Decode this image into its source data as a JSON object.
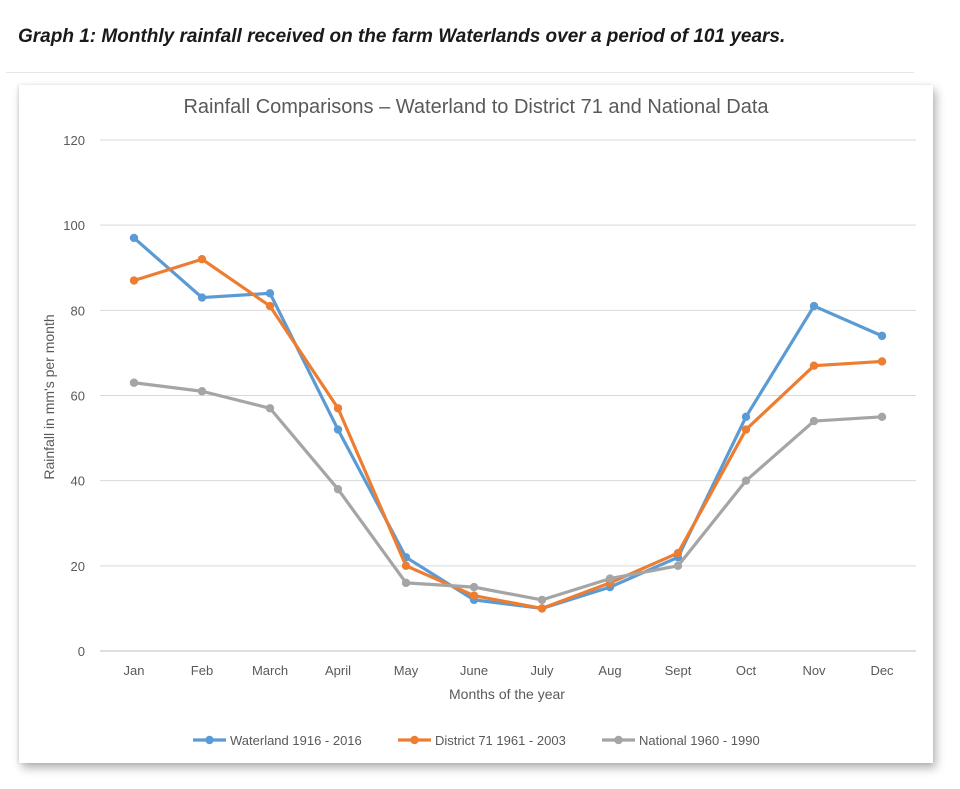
{
  "caption": "Graph 1: Monthly rainfall received on the farm Waterlands over a period of 101 years.",
  "chart_data": {
    "type": "line",
    "title": "Rainfall Comparisons – Waterland to District 71 and National Data",
    "xlabel": "Months of the  year",
    "ylabel": "Rainfall in mm's  per month",
    "categories": [
      "Jan",
      "Feb",
      "March",
      "April",
      "May",
      "June",
      "July",
      "Aug",
      "Sept",
      "Oct",
      "Nov",
      "Dec"
    ],
    "ylim": [
      0,
      120
    ],
    "yticks": [
      0,
      20,
      40,
      60,
      80,
      100,
      120
    ],
    "grid": true,
    "legend_position": "bottom",
    "series": [
      {
        "name": "Waterland 1916 - 2016",
        "color": "#5b9bd5",
        "values": [
          97,
          83,
          84,
          52,
          22,
          12,
          10,
          15,
          22,
          55,
          81,
          74
        ]
      },
      {
        "name": "District 71 1961 - 2003",
        "color": "#ed7d31",
        "values": [
          87,
          92,
          81,
          57,
          20,
          13,
          10,
          16,
          23,
          52,
          67,
          68
        ]
      },
      {
        "name": "National 1960 - 1990",
        "color": "#a5a5a5",
        "values": [
          63,
          61,
          57,
          38,
          16,
          15,
          12,
          17,
          20,
          40,
          54,
          55
        ]
      }
    ]
  }
}
